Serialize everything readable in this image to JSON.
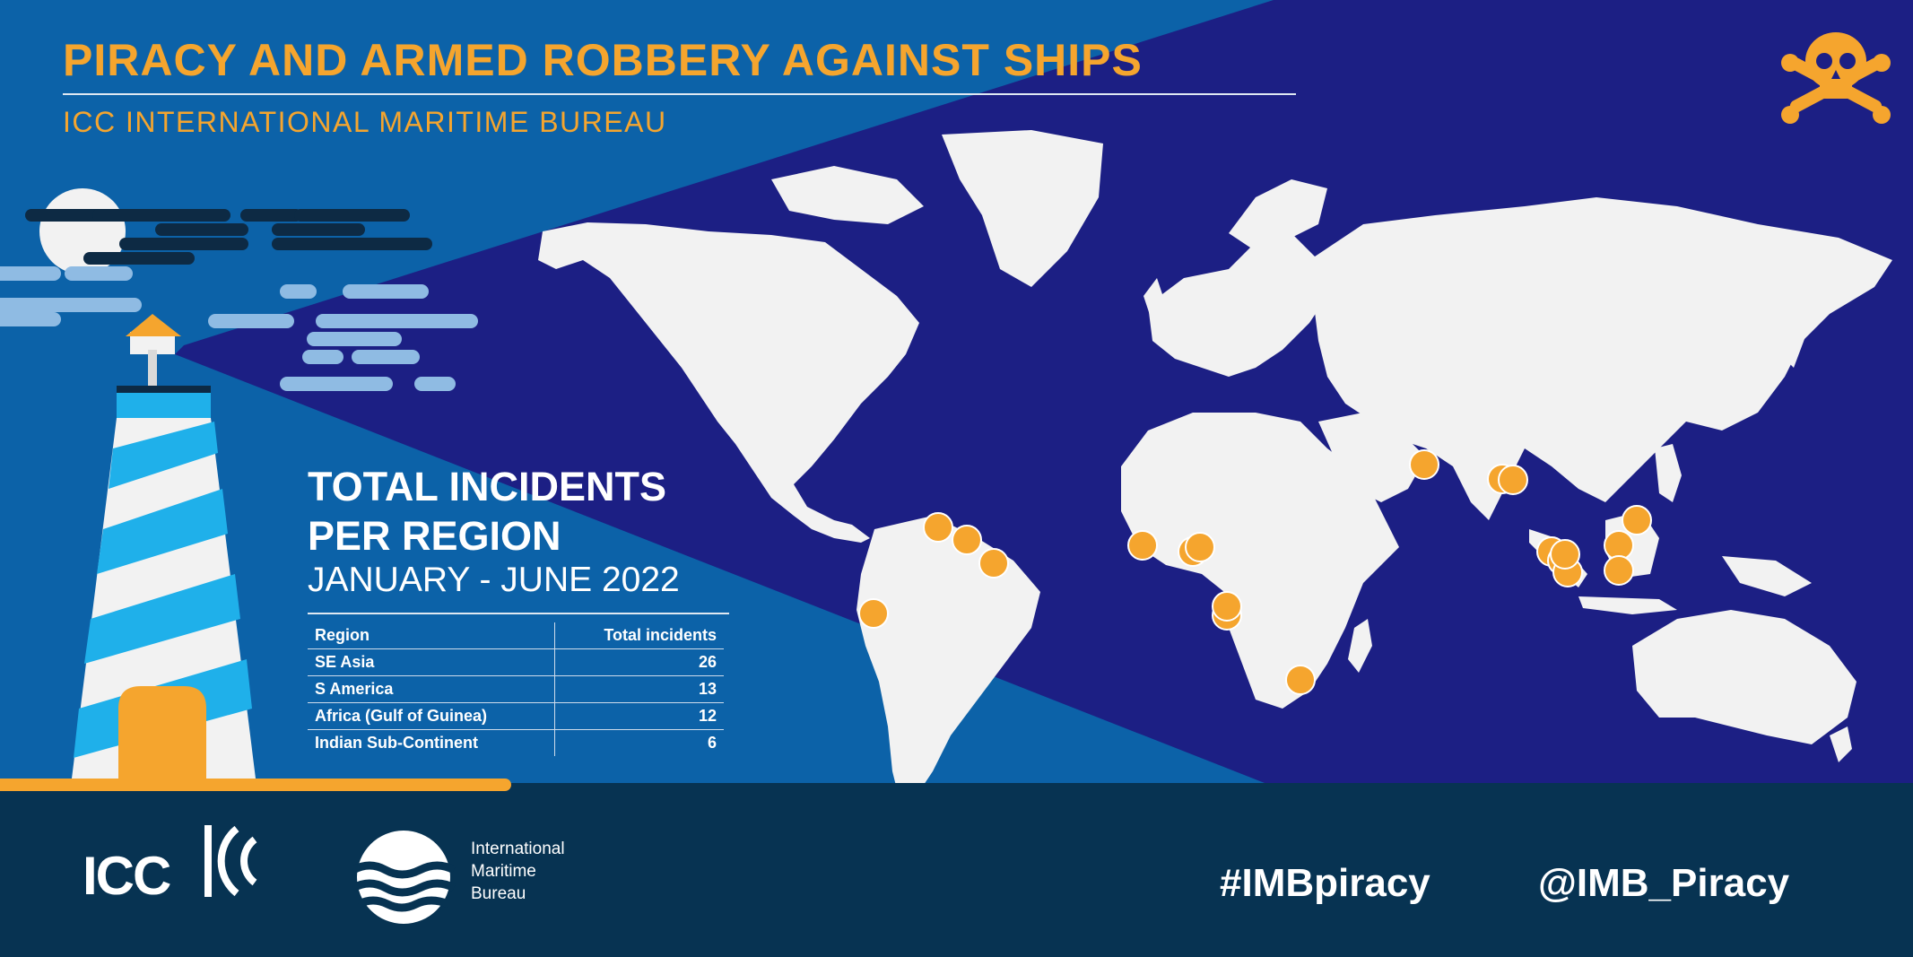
{
  "header": {
    "title": "PIRACY AND ARMED ROBBERY AGAINST SHIPS",
    "subtitle": "ICC INTERNATIONAL MARITIME BUREAU"
  },
  "incidents": {
    "title_line1": "TOTAL INCIDENTS",
    "title_line2": "PER REGION",
    "period": "JANUARY - JUNE 2022",
    "table": {
      "headers": [
        "Region",
        "Total incidents"
      ],
      "rows": [
        {
          "region": "SE Asia",
          "total": "26"
        },
        {
          "region": "S America",
          "total": "13"
        },
        {
          "region": "Africa (Gulf of Guinea)",
          "total": "12"
        },
        {
          "region": "Indian Sub-Continent",
          "total": "6"
        }
      ]
    }
  },
  "footer": {
    "icc_logo": "ICC",
    "imb_name": [
      "International",
      "Maritime",
      "Bureau"
    ],
    "hashtag": "#IMBpiracy",
    "handle": "@IMB_Piracy"
  },
  "icons": {
    "skull": "skull-crossbones-icon",
    "lighthouse": "lighthouse-icon",
    "moon": "moon-icon"
  },
  "colors": {
    "accent_orange": "#f5a52e",
    "ocean_dark": "#1c1f84",
    "ocean_light": "#0c62a8",
    "land": "#f2f2f2",
    "footer_bg": "#073352"
  }
}
